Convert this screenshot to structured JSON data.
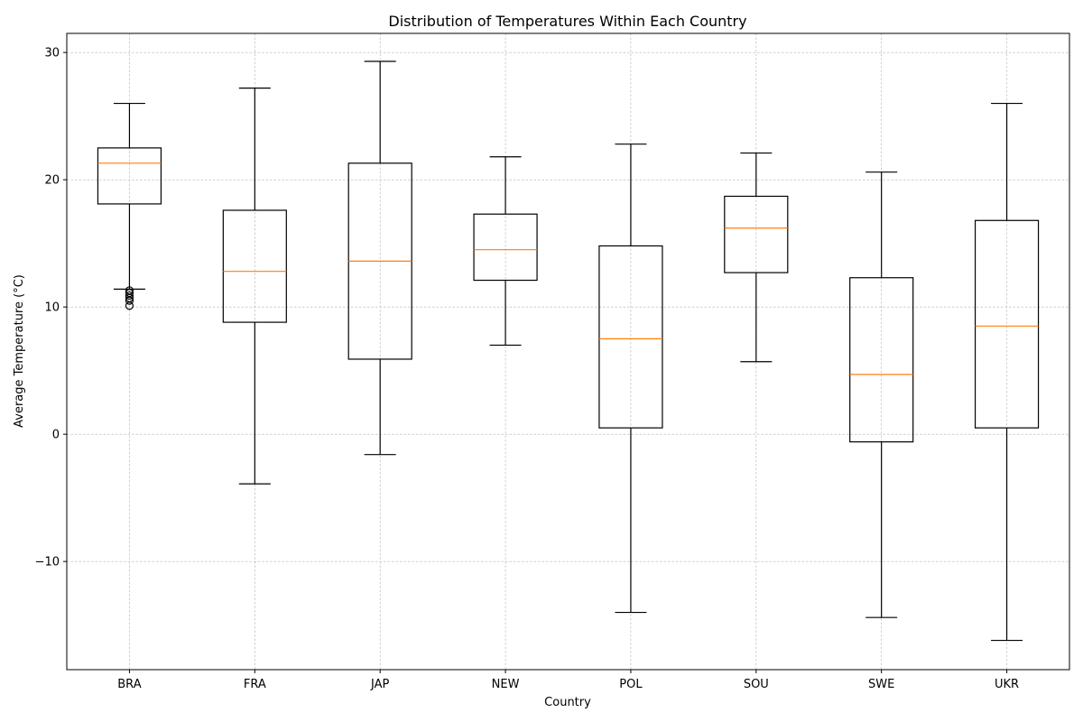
{
  "chart_data": {
    "type": "box",
    "title": "Distribution of Temperatures Within Each Country",
    "xlabel": "Country",
    "ylabel": "Average Temperature (°C)",
    "ylim": [
      -18.5,
      31.5
    ],
    "yticks": [
      -10,
      0,
      10,
      20,
      30
    ],
    "ytick_labels": [
      "−10",
      "0",
      "10",
      "20",
      "30"
    ],
    "grid": true,
    "colors": {
      "box": "#000000",
      "median": "#ff7f0e",
      "grid": "#b0b0b0"
    },
    "categories": [
      "BRA",
      "FRA",
      "JAP",
      "NEW",
      "POL",
      "SOU",
      "SWE",
      "UKR"
    ],
    "boxes": [
      {
        "label": "BRA",
        "whisker_low": 11.4,
        "q1": 18.1,
        "median": 21.3,
        "q3": 22.5,
        "whisker_high": 26.0,
        "outliers": [
          11.3,
          11.1,
          10.9,
          10.7,
          10.5,
          10.1
        ]
      },
      {
        "label": "FRA",
        "whisker_low": -3.9,
        "q1": 8.8,
        "median": 12.8,
        "q3": 17.6,
        "whisker_high": 27.2,
        "outliers": []
      },
      {
        "label": "JAP",
        "whisker_low": -1.6,
        "q1": 5.9,
        "median": 13.6,
        "q3": 21.3,
        "whisker_high": 29.3,
        "outliers": []
      },
      {
        "label": "NEW",
        "whisker_low": 7.0,
        "q1": 12.1,
        "median": 14.5,
        "q3": 17.3,
        "whisker_high": 21.8,
        "outliers": []
      },
      {
        "label": "POL",
        "whisker_low": -14.0,
        "q1": 0.5,
        "median": 7.5,
        "q3": 14.8,
        "whisker_high": 22.8,
        "outliers": []
      },
      {
        "label": "SOU",
        "whisker_low": 5.7,
        "q1": 12.7,
        "median": 16.2,
        "q3": 18.7,
        "whisker_high": 22.1,
        "outliers": []
      },
      {
        "label": "SWE",
        "whisker_low": -14.4,
        "q1": -0.6,
        "median": 4.7,
        "q3": 12.3,
        "whisker_high": 20.6,
        "outliers": []
      },
      {
        "label": "UKR",
        "whisker_low": -16.2,
        "q1": 0.5,
        "median": 8.5,
        "q3": 16.8,
        "whisker_high": 26.0,
        "outliers": []
      }
    ]
  }
}
